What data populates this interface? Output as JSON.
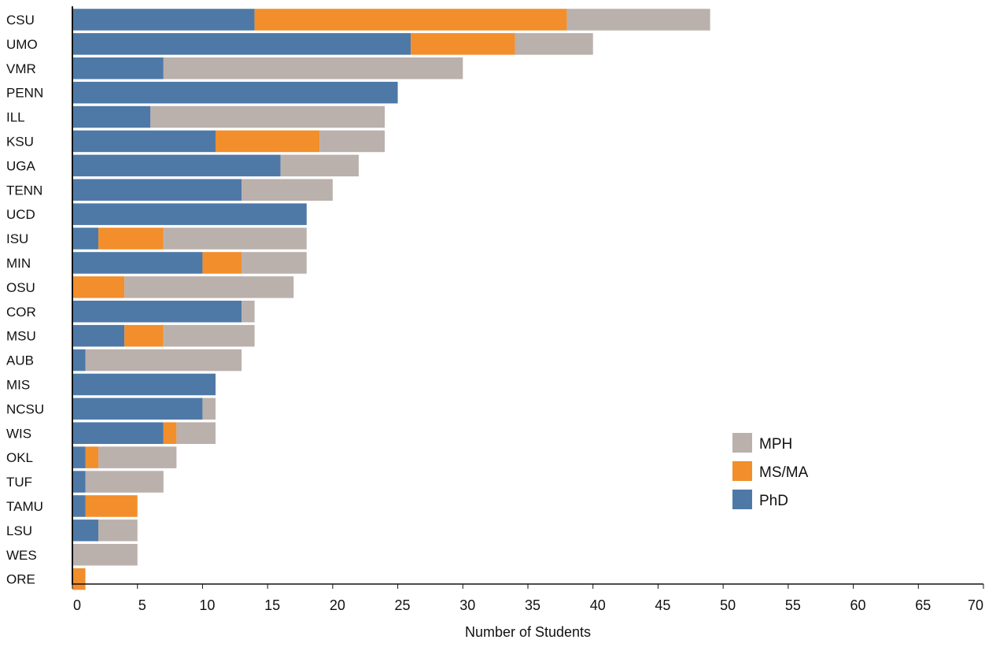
{
  "chart_data": {
    "type": "bar",
    "orientation": "horizontal",
    "stacked": true,
    "title": "",
    "xlabel": "Number of Students",
    "ylabel": "",
    "xlim": [
      0,
      70
    ],
    "xticks": [
      0,
      5,
      10,
      15,
      20,
      25,
      30,
      35,
      40,
      45,
      50,
      55,
      60,
      65,
      70
    ],
    "grid": false,
    "legend_position": "lower-right",
    "categories": [
      "CSU",
      "UMO",
      "VMR",
      "PENN",
      "ILL",
      "KSU",
      "UGA",
      "TENN",
      "UCD",
      "ISU",
      "MIN",
      "OSU",
      "COR",
      "MSU",
      "AUB",
      "MIS",
      "NCSU",
      "WIS",
      "OKL",
      "TUF",
      "TAMU",
      "LSU",
      "WES",
      "ORE"
    ],
    "series": [
      {
        "name": "PhD",
        "color": "#4e79a7",
        "values": [
          14,
          26,
          7,
          25,
          6,
          11,
          16,
          13,
          18,
          2,
          10,
          0,
          13,
          4,
          1,
          11,
          10,
          7,
          1,
          1,
          1,
          2,
          0,
          0
        ]
      },
      {
        "name": "MS/MA",
        "color": "#f28e2b",
        "values": [
          24,
          8,
          0,
          0,
          0,
          8,
          0,
          0,
          0,
          5,
          3,
          4,
          0,
          3,
          0,
          0,
          0,
          1,
          1,
          0,
          4,
          0,
          0,
          1
        ]
      },
      {
        "name": "MPH",
        "color": "#bab0ac",
        "values": [
          11,
          6,
          23,
          0,
          18,
          5,
          6,
          7,
          0,
          11,
          5,
          13,
          1,
          7,
          12,
          0,
          1,
          3,
          6,
          6,
          0,
          3,
          5,
          0
        ]
      }
    ],
    "legend_order": [
      "MPH",
      "MS/MA",
      "PhD"
    ]
  }
}
